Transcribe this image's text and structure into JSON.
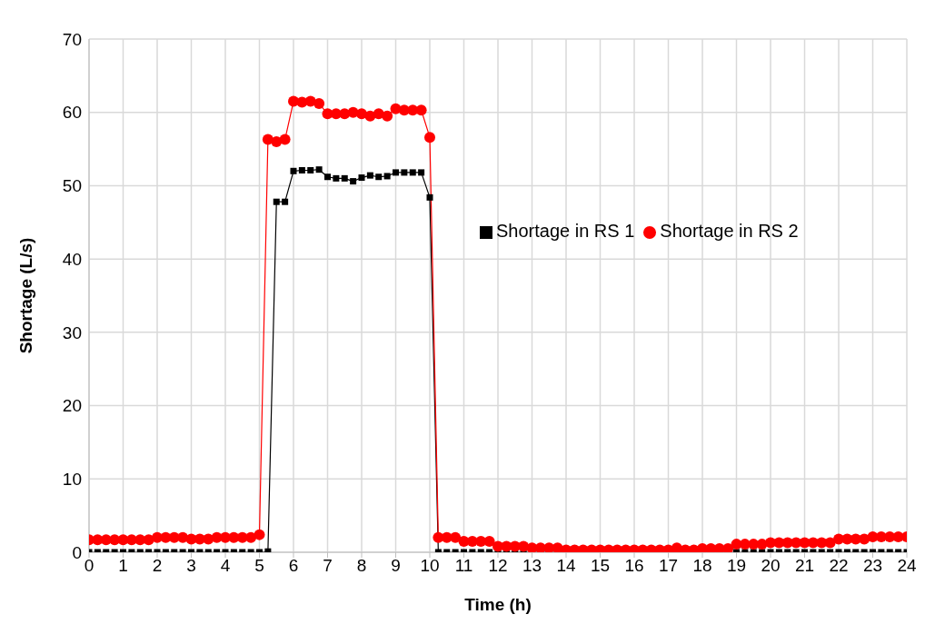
{
  "chart_data": {
    "type": "line",
    "xlabel": "Time (h)",
    "ylabel": "Shortage (L/s)",
    "x": [
      0,
      0.25,
      0.5,
      0.75,
      1,
      1.25,
      1.5,
      1.75,
      2,
      2.25,
      2.5,
      2.75,
      3,
      3.25,
      3.5,
      3.75,
      4,
      4.25,
      4.5,
      4.75,
      5,
      5.25,
      5.5,
      5.75,
      6,
      6.25,
      6.5,
      6.75,
      7,
      7.25,
      7.5,
      7.75,
      8,
      8.25,
      8.5,
      8.75,
      9,
      9.25,
      9.5,
      9.75,
      10,
      10.25,
      10.5,
      10.75,
      11,
      11.25,
      11.5,
      11.75,
      12,
      12.25,
      12.5,
      12.75,
      13,
      13.25,
      13.5,
      13.75,
      14,
      14.25,
      14.5,
      14.75,
      15,
      15.25,
      15.5,
      15.75,
      16,
      16.25,
      16.5,
      16.75,
      17,
      17.25,
      17.5,
      17.75,
      18,
      18.25,
      18.5,
      18.75,
      19,
      19.25,
      19.5,
      19.75,
      20,
      20.25,
      20.5,
      20.75,
      21,
      21.25,
      21.5,
      21.75,
      22,
      22.25,
      22.5,
      22.75,
      23,
      23.25,
      23.5,
      23.75,
      24
    ],
    "series": [
      {
        "name": "Shortage in RS 1",
        "color": "#000000",
        "marker": "square",
        "values": [
          0,
          0,
          0,
          0,
          0,
          0,
          0,
          0,
          0,
          0,
          0,
          0,
          0,
          0,
          0,
          0,
          0,
          0,
          0,
          0,
          0,
          0.1,
          47.8,
          47.8,
          52,
          52.1,
          52.1,
          52.2,
          51.2,
          51,
          51,
          50.6,
          51.1,
          51.4,
          51.2,
          51.3,
          51.8,
          51.8,
          51.8,
          51.8,
          48.4,
          0,
          0,
          0,
          0,
          0,
          0,
          0,
          0,
          0,
          0,
          0,
          0,
          0,
          0,
          0,
          0,
          0,
          0,
          0,
          0,
          0,
          0,
          0,
          0,
          0,
          0,
          0,
          0,
          0,
          0,
          0,
          0,
          0,
          0,
          0,
          0,
          0,
          0,
          0,
          0,
          0,
          0,
          0,
          0,
          0,
          0,
          0,
          0,
          0,
          0,
          0,
          0,
          0,
          0,
          0,
          0
        ]
      },
      {
        "name": "Shortage in RS 2",
        "color": "#ff0000",
        "marker": "circle",
        "values": [
          1.7,
          1.7,
          1.7,
          1.7,
          1.7,
          1.7,
          1.7,
          1.7,
          2,
          2,
          2,
          2,
          1.8,
          1.8,
          1.8,
          2,
          2,
          2,
          2,
          2,
          2.4,
          56.3,
          56,
          56.3,
          61.5,
          61.4,
          61.5,
          61.2,
          59.8,
          59.8,
          59.8,
          60,
          59.8,
          59.5,
          59.8,
          59.5,
          60.5,
          60.3,
          60.3,
          60.3,
          56.6,
          2,
          2,
          2,
          1.5,
          1.5,
          1.5,
          1.5,
          0.8,
          0.8,
          0.8,
          0.8,
          0.6,
          0.6,
          0.6,
          0.6,
          0.3,
          0.3,
          0.3,
          0.3,
          0.3,
          0.3,
          0.3,
          0.3,
          0.3,
          0.3,
          0.3,
          0.3,
          0.3,
          0.6,
          0.3,
          0.3,
          0.5,
          0.5,
          0.5,
          0.5,
          1.1,
          1.1,
          1.1,
          1.1,
          1.3,
          1.3,
          1.3,
          1.3,
          1.3,
          1.3,
          1.3,
          1.3,
          1.8,
          1.8,
          1.8,
          1.8,
          2.1,
          2.1,
          2.1,
          2.1,
          2.1
        ]
      }
    ],
    "xlim": [
      0,
      24
    ],
    "xticks": [
      0,
      1,
      2,
      3,
      4,
      5,
      6,
      7,
      8,
      9,
      10,
      11,
      12,
      13,
      14,
      15,
      16,
      17,
      18,
      19,
      20,
      21,
      22,
      23,
      24
    ],
    "ylim": [
      0,
      70
    ],
    "yticks": [
      0,
      10,
      20,
      30,
      40,
      50,
      60,
      70
    ],
    "grid": true,
    "legend": "right"
  }
}
